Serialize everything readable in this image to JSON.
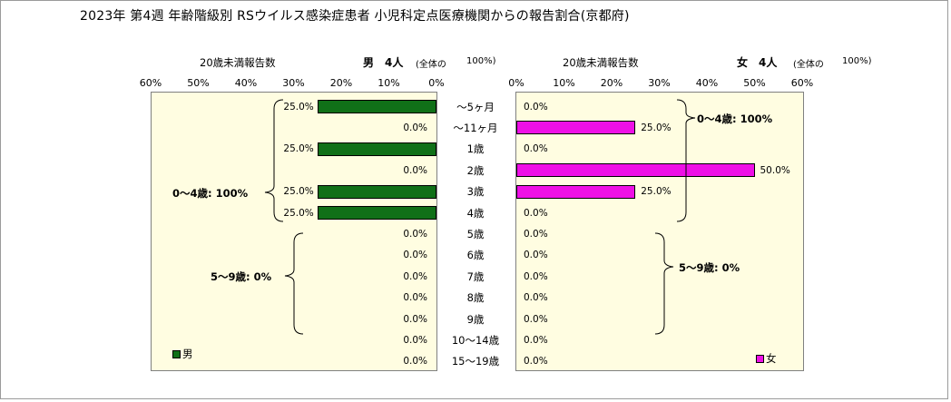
{
  "title": "2023年 第4週 年齢階級別 RSウイルス感染症患者 小児科定点医療機関からの報告割合(京都府)",
  "male": {
    "subtitle": "20歳未満報告数",
    "label": "男",
    "count": "4人",
    "total_note": "(全体の",
    "total_pct": "100%)",
    "legend": "男",
    "group_0_4": "0～4歳: 100%",
    "group_5_9": "5～9歳: 0%"
  },
  "female": {
    "subtitle": "20歳未満報告数",
    "label": "女",
    "count": "4人",
    "total_note": "(全体の",
    "total_pct": "100%)",
    "legend": "女",
    "group_0_4": "0～4歳: 100%",
    "group_5_9": "5～9歳: 0%"
  },
  "colors": {
    "male": "#107018",
    "female": "#ee10e6",
    "plot_bg": "#fffde1"
  },
  "chart_data": {
    "type": "bar",
    "orientation": "horizontal-pyramid",
    "categories": [
      "～5ヶ月",
      "～11ヶ月",
      "1歳",
      "2歳",
      "3歳",
      "4歳",
      "5歳",
      "6歳",
      "7歳",
      "8歳",
      "9歳",
      "10～14歳",
      "15～19歳"
    ],
    "series": [
      {
        "name": "男",
        "values": [
          25.0,
          0,
          25.0,
          0,
          25.0,
          25.0,
          0,
          0,
          0,
          0,
          0,
          0,
          0
        ]
      },
      {
        "name": "女",
        "values": [
          0,
          25.0,
          0,
          50.0,
          25.0,
          0,
          0,
          0,
          0,
          0,
          0,
          0,
          0
        ]
      }
    ],
    "value_labels": {
      "男": [
        "25.0%",
        "0.0%",
        "25.0%",
        "0.0%",
        "25.0%",
        "25.0%",
        "0.0%",
        "0.0%",
        "0.0%",
        "0.0%",
        "0.0%",
        "0.0%",
        "0.0%"
      ],
      "女": [
        "0.0%",
        "25.0%",
        "0.0%",
        "50.0%",
        "25.0%",
        "0.0%",
        "0.0%",
        "0.0%",
        "0.0%",
        "0.0%",
        "0.0%",
        "0.0%",
        "0.0%"
      ]
    },
    "xlim": [
      0,
      60
    ],
    "xticks_left": [
      "60%",
      "50%",
      "40%",
      "30%",
      "20%",
      "10%",
      "0%"
    ],
    "xticks_right": [
      "0%",
      "10%",
      "20%",
      "30%",
      "40%",
      "50%",
      "60%"
    ],
    "grid": false
  }
}
